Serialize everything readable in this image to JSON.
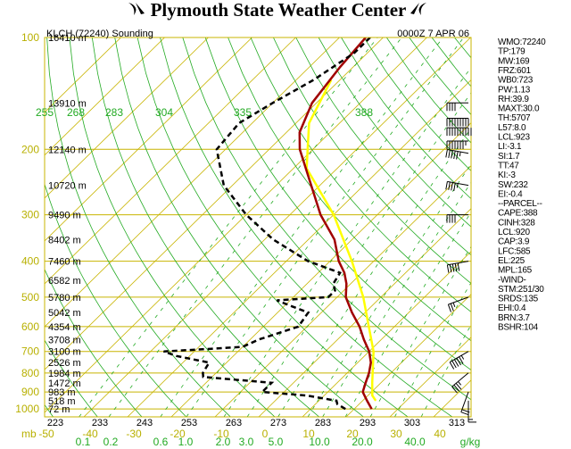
{
  "header": {
    "title": "Plymouth State Weather Center",
    "station": "KLCH (72240) Sounding",
    "time": "0000Z  7 APR 06"
  },
  "indices": [
    "WMO:72240",
    "TP:179",
    "MW:169",
    "FRZ:601",
    "WB0:723",
    "PW:1.13",
    "RH:39.9",
    "MAXT:30.0",
    "TH:5707",
    "L57:8.0",
    "LCL:923",
    "LI:-3.1",
    "SI:1.7",
    "TT:47",
    "KI:-3",
    "SW:232",
    "EI:-0.4",
    "--PARCEL--",
    "CAPE:388",
    "CINH:328",
    "LCL:920",
    "CAP:3.9",
    "LFC:585",
    "EL:225",
    "MPL:165",
    "-WIND-",
    "STM:251/30",
    "SRDS:135",
    "EHI:0.4",
    "BRN:3.7",
    "BSHR:104"
  ],
  "colors": {
    "isobar": "#c8b400",
    "dry_adiabat": "#22aa22",
    "mixing_ratio": "#22aa22",
    "temperature": "#a00000",
    "dewpoint": "#000000",
    "parcel": "#ffff00"
  },
  "chart_data": {
    "type": "line",
    "title": "KLCH (72240) Sounding",
    "pressure_levels": [
      100,
      200,
      300,
      400,
      500,
      600,
      700,
      800,
      900,
      1000
    ],
    "height_labels": [
      {
        "p": 100,
        "text": "16410 m"
      },
      {
        "p": 150,
        "text": "13910 m"
      },
      {
        "p": 200,
        "text": "12140 m"
      },
      {
        "p": 250,
        "text": "10720 m"
      },
      {
        "p": 300,
        "text": "9490 m"
      },
      {
        "p": 350,
        "text": "8402 m"
      },
      {
        "p": 400,
        "text": "7460 m"
      },
      {
        "p": 450,
        "text": "6582 m"
      },
      {
        "p": 500,
        "text": "5780 m"
      },
      {
        "p": 550,
        "text": "5042 m"
      },
      {
        "p": 600,
        "text": "4354 m"
      },
      {
        "p": 650,
        "text": "3708 m"
      },
      {
        "p": 700,
        "text": "3100 m"
      },
      {
        "p": 750,
        "text": "2526 m"
      },
      {
        "p": 800,
        "text": "1984 m"
      },
      {
        "p": 850,
        "text": "1472 m"
      },
      {
        "p": 900,
        "text": "983 m"
      },
      {
        "p": 950,
        "text": "518 m"
      },
      {
        "p": 1000,
        "text": "72 m"
      }
    ],
    "bottom_axis_label": "mb",
    "temperature_ticks": [
      "-50",
      "-40",
      "-30",
      "-20",
      "-10",
      "0",
      "10",
      "20",
      "30",
      "40"
    ],
    "theta_ticks_bottom": [
      "223",
      "233",
      "243",
      "253",
      "263",
      "273",
      "283",
      "293",
      "303",
      "313"
    ],
    "theta_ticks_top": [
      "255",
      "268",
      "283",
      "304",
      "335",
      "388"
    ],
    "mixing_ratio_ticks": [
      "0.1",
      "0.2",
      "0.6",
      "1.0",
      "2.0",
      "3.0",
      "5.0",
      "10.0",
      "20.0",
      "40.0"
    ],
    "mixing_ratio_unit": "g/kg",
    "temperature_profile": [
      {
        "p": 1000,
        "t": 24
      },
      {
        "p": 950,
        "t": 21
      },
      {
        "p": 900,
        "t": 18
      },
      {
        "p": 850,
        "t": 16.5
      },
      {
        "p": 800,
        "t": 15
      },
      {
        "p": 750,
        "t": 13
      },
      {
        "p": 700,
        "t": 10
      },
      {
        "p": 650,
        "t": 6
      },
      {
        "p": 600,
        "t": 2
      },
      {
        "p": 550,
        "t": -3
      },
      {
        "p": 500,
        "t": -8
      },
      {
        "p": 460,
        "t": -11
      },
      {
        "p": 430,
        "t": -14
      },
      {
        "p": 400,
        "t": -18
      },
      {
        "p": 350,
        "t": -24
      },
      {
        "p": 300,
        "t": -33
      },
      {
        "p": 250,
        "t": -42
      },
      {
        "p": 200,
        "t": -53
      },
      {
        "p": 180,
        "t": -57
      },
      {
        "p": 150,
        "t": -61
      },
      {
        "p": 120,
        "t": -63
      },
      {
        "p": 100,
        "t": -64
      }
    ],
    "dewpoint_profile": [
      {
        "p": 1000,
        "t": 18
      },
      {
        "p": 970,
        "t": 15
      },
      {
        "p": 950,
        "t": 14
      },
      {
        "p": 920,
        "t": 6
      },
      {
        "p": 900,
        "t": -5
      },
      {
        "p": 870,
        "t": -5
      },
      {
        "p": 850,
        "t": -5
      },
      {
        "p": 820,
        "t": -22
      },
      {
        "p": 800,
        "t": -23
      },
      {
        "p": 750,
        "t": -24
      },
      {
        "p": 720,
        "t": -33
      },
      {
        "p": 700,
        "t": -37
      },
      {
        "p": 690,
        "t": -28
      },
      {
        "p": 680,
        "t": -20
      },
      {
        "p": 650,
        "t": -18
      },
      {
        "p": 600,
        "t": -12
      },
      {
        "p": 550,
        "t": -13
      },
      {
        "p": 530,
        "t": -18
      },
      {
        "p": 510,
        "t": -23
      },
      {
        "p": 500,
        "t": -12
      },
      {
        "p": 480,
        "t": -12
      },
      {
        "p": 460,
        "t": -14
      },
      {
        "p": 430,
        "t": -15
      },
      {
        "p": 400,
        "t": -25
      },
      {
        "p": 350,
        "t": -38
      },
      {
        "p": 300,
        "t": -50
      },
      {
        "p": 250,
        "t": -62
      },
      {
        "p": 200,
        "t": -72
      },
      {
        "p": 170,
        "t": -73
      },
      {
        "p": 150,
        "t": -70
      },
      {
        "p": 130,
        "t": -66
      },
      {
        "p": 110,
        "t": -63
      },
      {
        "p": 100,
        "t": -63
      }
    ],
    "parcel_profile": [
      {
        "p": 950,
        "t": 23
      },
      {
        "p": 920,
        "t": 21
      },
      {
        "p": 850,
        "t": 18
      },
      {
        "p": 700,
        "t": 11
      },
      {
        "p": 585,
        "t": 3
      },
      {
        "p": 500,
        "t": -4
      },
      {
        "p": 400,
        "t": -15
      },
      {
        "p": 300,
        "t": -30
      },
      {
        "p": 225,
        "t": -47
      },
      {
        "p": 170,
        "t": -57
      },
      {
        "p": 130,
        "t": -62
      }
    ],
    "wind_barbs": [
      {
        "p": 150,
        "dir": 270,
        "kt": 40
      },
      {
        "p": 165,
        "dir": 270,
        "kt": 90
      },
      {
        "p": 175,
        "dir": 270,
        "kt": 100
      },
      {
        "p": 190,
        "dir": 270,
        "kt": 75
      },
      {
        "p": 205,
        "dir": 280,
        "kt": 55
      },
      {
        "p": 250,
        "dir": 280,
        "kt": 45
      },
      {
        "p": 300,
        "dir": 270,
        "kt": 40
      },
      {
        "p": 400,
        "dir": 260,
        "kt": 50
      },
      {
        "p": 500,
        "dir": 250,
        "kt": 25
      },
      {
        "p": 700,
        "dir": 240,
        "kt": 55
      },
      {
        "p": 800,
        "dir": 230,
        "kt": 35
      },
      {
        "p": 900,
        "dir": 200,
        "kt": 20
      },
      {
        "p": 950,
        "dir": 180,
        "kt": 15
      }
    ]
  }
}
